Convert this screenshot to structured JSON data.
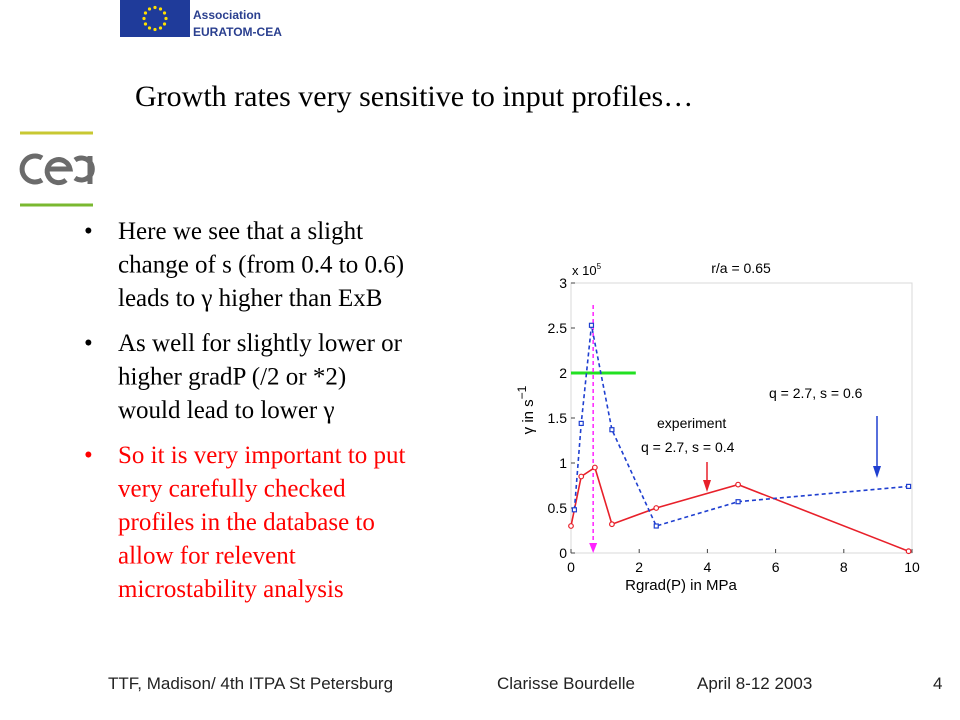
{
  "header": {
    "org_line1": "Association",
    "org_line2": "EURATOM-CEA"
  },
  "title": "Growth rates very sensitive to input profiles…",
  "bullets": [
    {
      "lines": [
        "Here we see that a slight",
        "change of s (from 0.4 to 0.6)",
        "leads to γ higher than ExB"
      ],
      "color": "#000000"
    },
    {
      "lines": [
        "As well for slightly lower or",
        "higher gradP (/2 or *2)",
        "would lead to lower γ"
      ],
      "color": "#000000"
    },
    {
      "lines": [
        "So it is very important to put",
        "very carefully checked",
        "profiles in the database to",
        "allow for relevent",
        "microstability analysis"
      ],
      "color": "#ff0000"
    }
  ],
  "footer": {
    "left": "TTF, Madison/ 4th ITPA St Petersburg",
    "author": "Clarisse Bourdelle",
    "date": "April 8-12  2003",
    "page": "4"
  },
  "chart_data": {
    "type": "line",
    "title": "r/a = 0.65",
    "multiplier": "x 10",
    "multiplier_exponent": "5",
    "xlabel": "Rgrad(P) in MPa",
    "ylabel": "γ in s",
    "ylabel_exponent": "−1",
    "xlim": [
      0,
      10
    ],
    "ylim": [
      0,
      3
    ],
    "xticks": [
      0,
      2,
      4,
      6,
      8,
      10
    ],
    "yticks": [
      0,
      0.5,
      1,
      1.5,
      2,
      2.5,
      3
    ],
    "grid": false,
    "series": [
      {
        "name": "q = 2.7, s = 0.4",
        "color": "#e8202a",
        "dashed": false,
        "marker": "circle",
        "x": [
          0,
          0.3,
          0.7,
          1.2,
          2.5,
          4.9,
          9.9
        ],
        "values": [
          0.3,
          0.85,
          0.95,
          0.32,
          0.5,
          0.76,
          0.02
        ]
      },
      {
        "name": "q = 2.7, s = 0.6",
        "color": "#1f3fd0",
        "dashed": true,
        "marker": "square",
        "x": [
          0.1,
          0.3,
          0.6,
          1.2,
          2.5,
          4.9,
          9.9
        ],
        "values": [
          0.48,
          1.44,
          2.53,
          1.37,
          0.3,
          0.57,
          0.74
        ]
      }
    ],
    "reference_lines": [
      {
        "axis": "y",
        "value": 2,
        "color": "#22e022"
      },
      {
        "axis": "x",
        "value": 0.65,
        "color": "#ff22ff"
      }
    ],
    "annotations": [
      "experiment"
    ]
  }
}
